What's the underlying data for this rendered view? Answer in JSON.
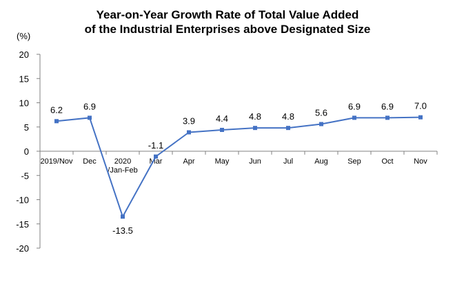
{
  "chart_data": {
    "type": "line",
    "title_line1": "Year-on-Year Growth Rate of Total Value Added",
    "title_line2": "of the Industrial Enterprises above Designated Size",
    "unit_label": "(%)",
    "categories": [
      [
        "2019/Nov"
      ],
      [
        "Dec"
      ],
      [
        "2020",
        "/Jan-Feb"
      ],
      [
        "Mar"
      ],
      [
        "Apr"
      ],
      [
        "May"
      ],
      [
        "Jun"
      ],
      [
        "Jul"
      ],
      [
        "Aug"
      ],
      [
        "Sep"
      ],
      [
        "Oct"
      ],
      [
        "Nov"
      ]
    ],
    "values": [
      6.2,
      6.9,
      -13.5,
      -1.1,
      3.9,
      4.4,
      4.8,
      4.8,
      5.6,
      6.9,
      6.9,
      7.0
    ],
    "data_labels": [
      "6.2",
      "6.9",
      "-13.5",
      "-1.1",
      "3.9",
      "4.4",
      "4.8",
      "4.8",
      "5.6",
      "6.9",
      "6.9",
      "7.0"
    ],
    "ylim": [
      -20,
      20
    ],
    "yticks": [
      20,
      15,
      10,
      5,
      0,
      -5,
      -10,
      -15,
      -20
    ],
    "grid": false,
    "line_color": "#4472C4",
    "axis_color": "#808080"
  }
}
